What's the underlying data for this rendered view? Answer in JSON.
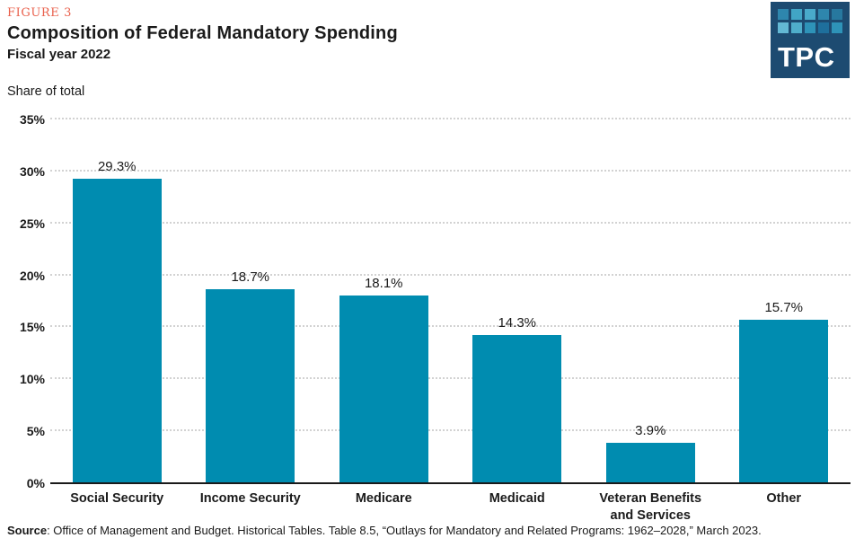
{
  "figure_label": "FIGURE 3",
  "logo": {
    "text": "TPC",
    "bg_color": "#1D4B71",
    "squares": [
      "#2E86AD",
      "#41A5C6",
      "#49AACB",
      "#2E86AD",
      "#27789F",
      "#63B8D4",
      "#4FAECB",
      "#2E93B8",
      "#1E6F9C",
      "#2E93B8"
    ]
  },
  "chart_data": {
    "type": "bar",
    "title": "Composition of Federal Mandatory Spending",
    "subtitle": "Fiscal year 2022",
    "ylabel": "Share of total",
    "xlabel": "",
    "categories": [
      "Social Security",
      "Income Security",
      "Medicare",
      "Medicaid",
      "Veteran Benefits and Services",
      "Other"
    ],
    "values": [
      29.3,
      18.7,
      18.1,
      14.3,
      3.9,
      15.7
    ],
    "value_labels": [
      "29.3%",
      "18.7%",
      "18.1%",
      "14.3%",
      "3.9%",
      "15.7%"
    ],
    "ylim": [
      0,
      35
    ],
    "yticks": [
      0,
      5,
      10,
      15,
      20,
      25,
      30,
      35
    ],
    "ytick_suffix": "%",
    "grid": "horizontal-dotted",
    "legend": "none",
    "bar_color": "#008CB0"
  },
  "colors": {
    "figure_label": "#E9604C",
    "text": "#1A1A1A",
    "gridline": "#D2D2D2",
    "axis_line": "#1A1A1A"
  },
  "footer": {
    "source_label": "Source",
    "source_text": ": Office of Management and Budget. Historical Tables. Table 8.5, “Outlays for Mandatory and Related Programs: 1962–2028,” March 2023."
  }
}
